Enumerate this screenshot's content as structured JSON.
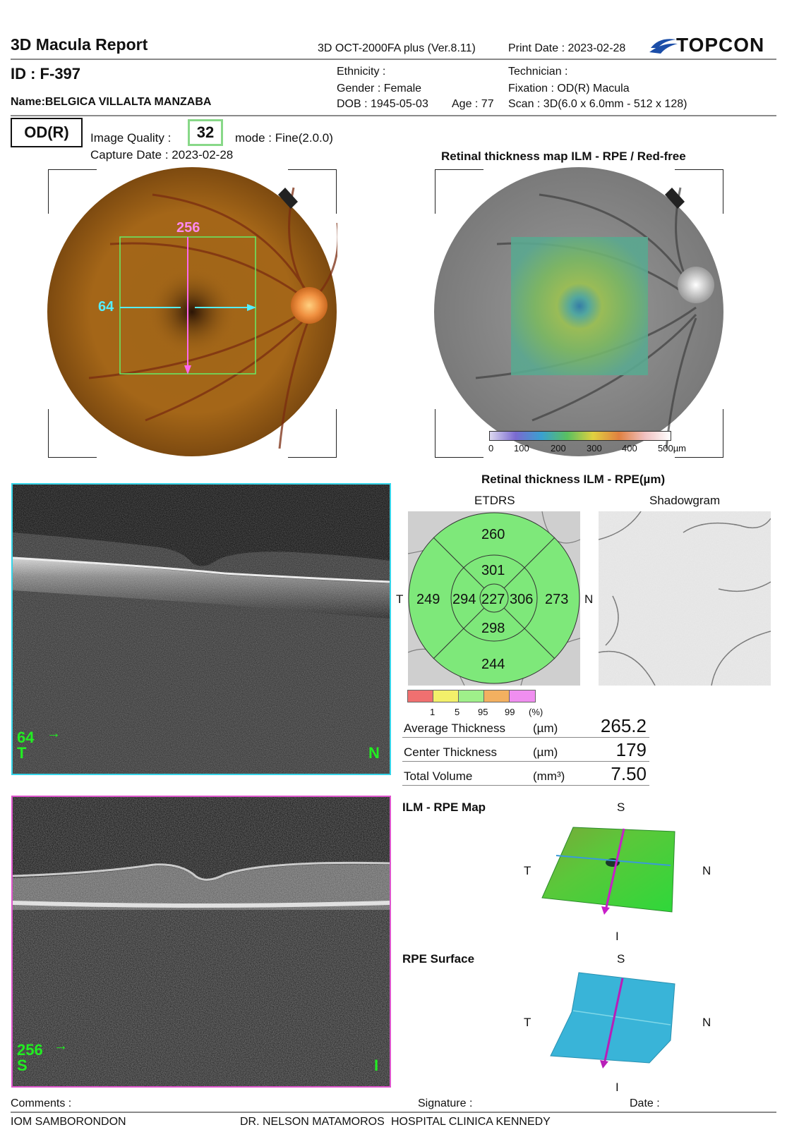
{
  "header": {
    "title": "3D Macula Report",
    "device": "3D OCT-2000FA plus (Ver.8.11)",
    "print_date": "Print Date : 2023-02-28",
    "brand": "TOPCON"
  },
  "patient": {
    "id": "ID : F-397",
    "name": "Name:BELGICA VILLALTA MANZABA",
    "ethnicity": "Ethnicity :",
    "gender": "Gender : Female",
    "dob": "DOB : 1945-05-03",
    "age": "Age : 77",
    "technician": "Technician :",
    "fixation": "Fixation : OD(R) Macula",
    "scan": "Scan : 3D(6.0 x 6.0mm - 512 x 128)"
  },
  "capture": {
    "eye": "OD(R)",
    "image_quality_label": "Image Quality :",
    "image_quality": "32",
    "mode": "mode : Fine(2.0.0)",
    "capture_date": "Capture Date : 2023-02-28"
  },
  "fundus": {
    "vertical_marker": "256",
    "horizontal_marker": "64"
  },
  "thickness_map": {
    "title": "Retinal thickness map ILM - RPE / Red-free",
    "scale_ticks": [
      "0",
      "100",
      "200",
      "300",
      "400",
      "500µm"
    ]
  },
  "oct_scans": [
    {
      "position": "64",
      "left": "T",
      "right": "N",
      "frame_color": "#35d4e8"
    },
    {
      "position": "256",
      "left": "S",
      "right": "I",
      "frame_color": "#dd55cc"
    }
  ],
  "etdrs": {
    "title": "Retinal thickness ILM - RPE(µm)",
    "label": "ETDRS",
    "shadowgram_label": "Shadowgram",
    "outer_superior": "260",
    "inner_superior": "301",
    "outer_temporal": "249",
    "inner_temporal": "294",
    "center": "227",
    "inner_nasal": "306",
    "outer_nasal": "273",
    "inner_inferior": "298",
    "outer_inferior": "244",
    "side_left": "T",
    "side_right": "N",
    "legend_colors": [
      "#f07070",
      "#f3f06a",
      "#9ff08a",
      "#f3b060",
      "#f08ef0"
    ],
    "legend_ticks": [
      "1",
      "5",
      "95",
      "99",
      "(%)"
    ]
  },
  "metrics": [
    {
      "label": "Average Thickness",
      "unit": "(µm)",
      "value": "265.2"
    },
    {
      "label": "Center Thickness",
      "unit": "(µm)",
      "value": "179"
    },
    {
      "label": "Total Volume",
      "unit": "(mm³)",
      "value": "7.50"
    }
  ],
  "maps3d": [
    {
      "title": "ILM - RPE Map",
      "top": "S",
      "bottom": "I",
      "left": "T",
      "right": "N"
    },
    {
      "title": "RPE Surface",
      "top": "S",
      "bottom": "I",
      "left": "T",
      "right": "N"
    }
  ],
  "footer": {
    "comments": "Comments :",
    "signature": "Signature :",
    "date": "Date :",
    "clinic": "IOM SAMBORONDON",
    "doctor": "DR. NELSON MATAMOROS",
    "hospital": "HOSPITAL CLINICA KENNEDY"
  }
}
